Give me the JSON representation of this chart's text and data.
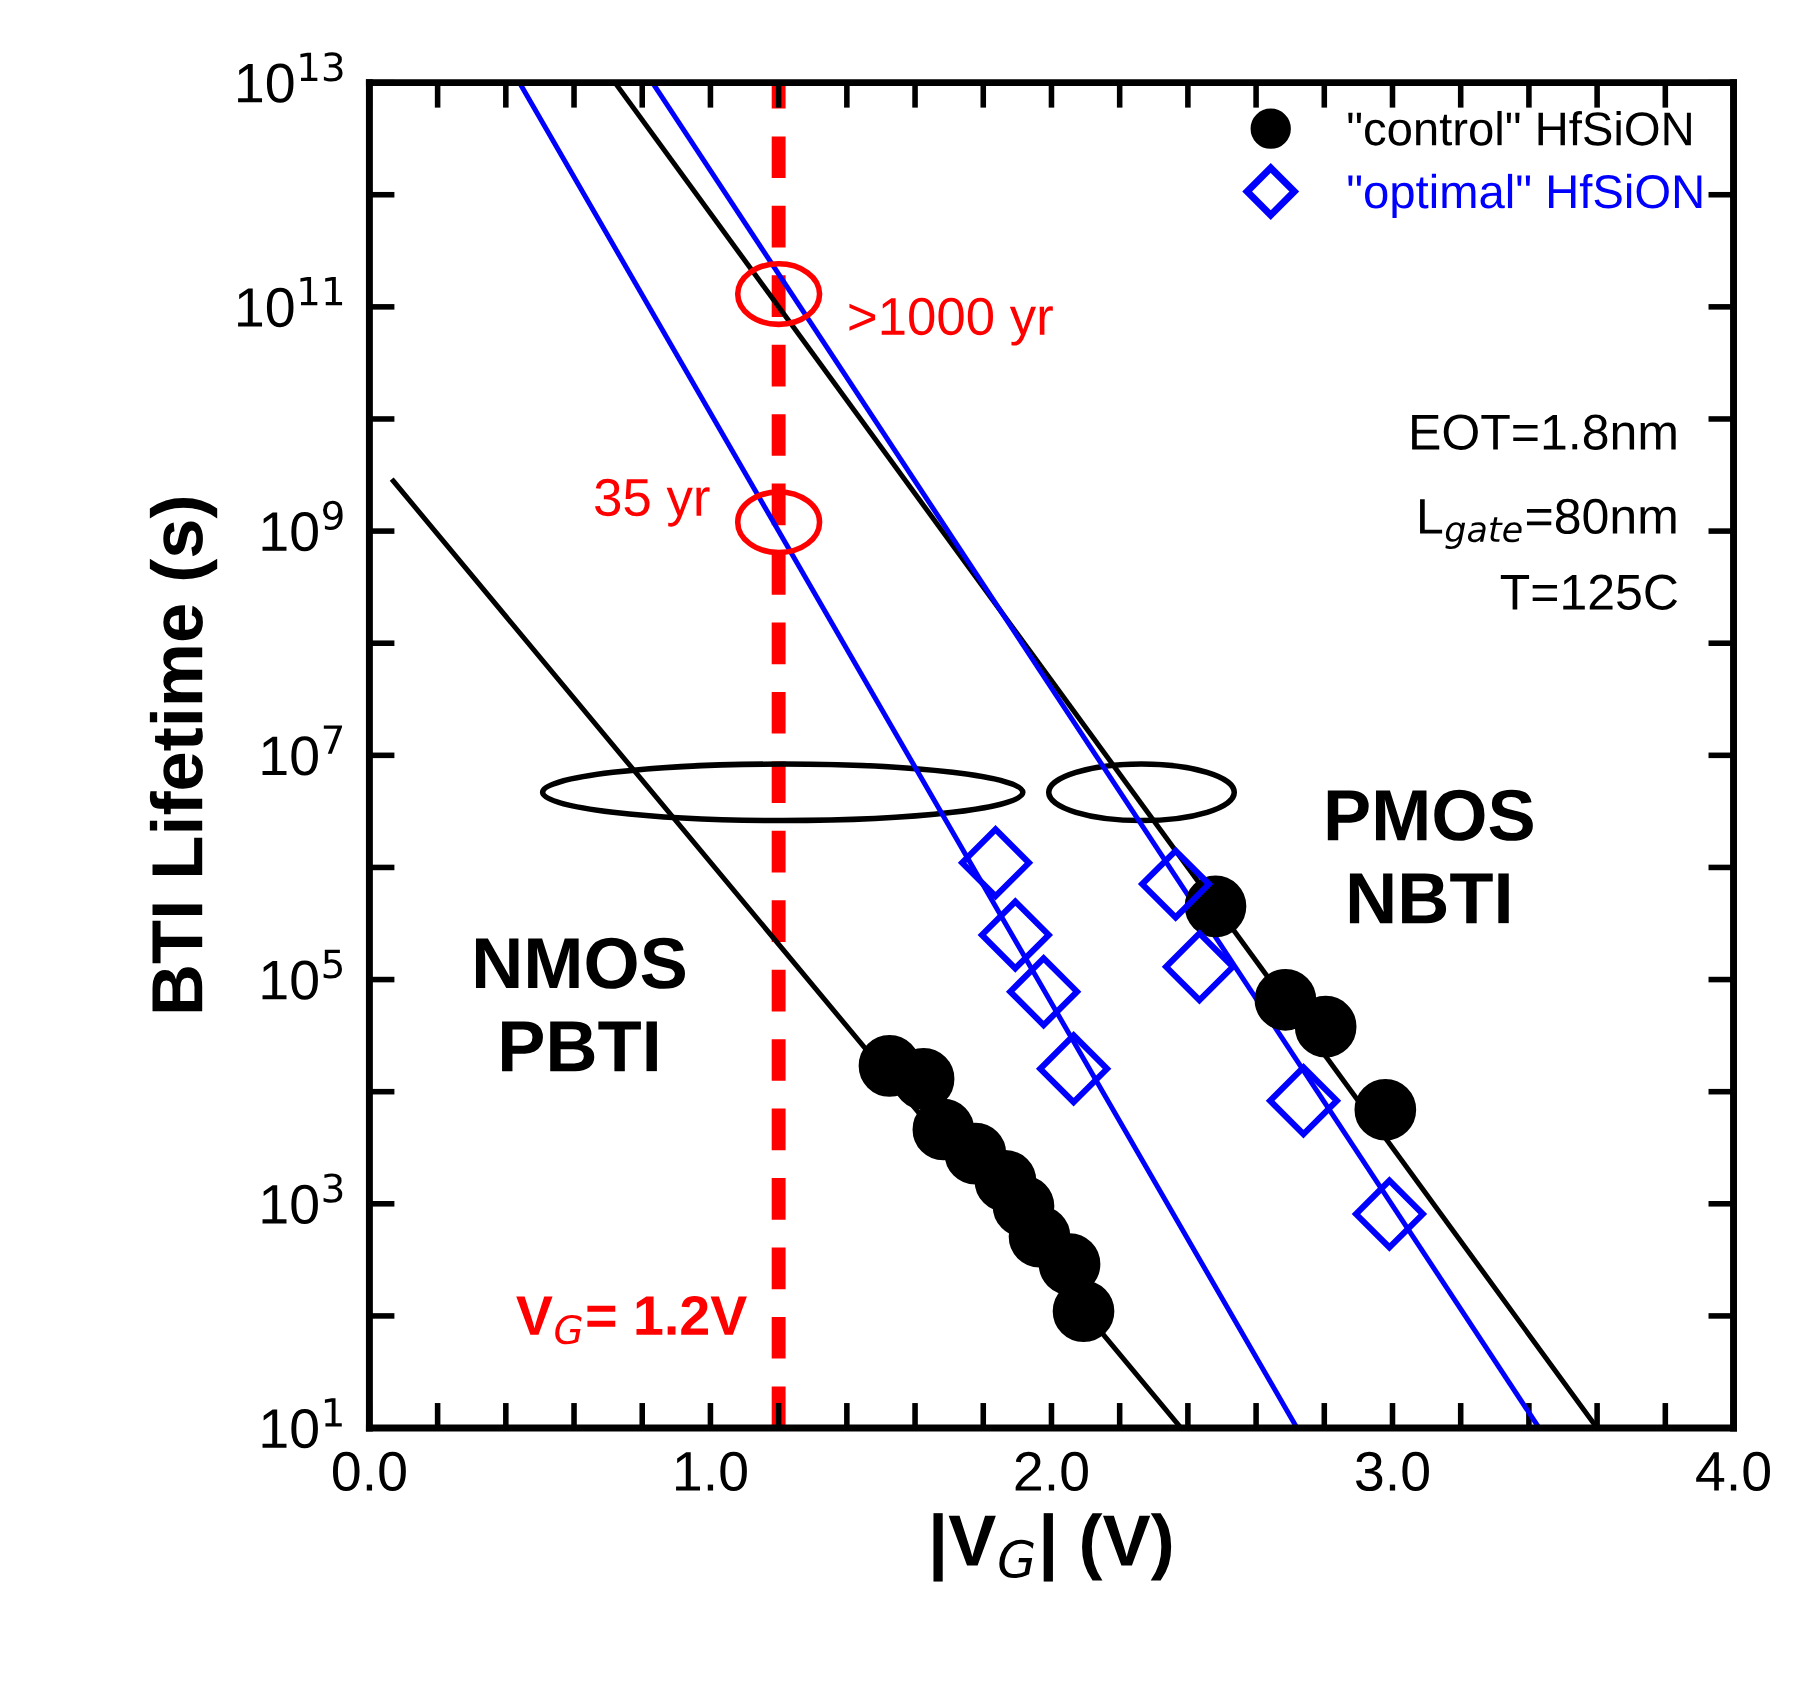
{
  "chart_data": {
    "type": "scatter",
    "xlabel": "|V$_{G}$| (V)",
    "ylabel": "BTI Lifetime (s)",
    "log": "y",
    "xlim": [
      0,
      4
    ],
    "ylim": [
      10,
      10000000000000.0
    ],
    "xticks": [
      {
        "value": 0,
        "label": "0.0"
      },
      {
        "value": 0.2,
        "label": null
      },
      {
        "value": 0.4,
        "label": null
      },
      {
        "value": 0.6,
        "label": null
      },
      {
        "value": 0.8,
        "label": null
      },
      {
        "value": 1,
        "label": "1.0"
      },
      {
        "value": 1.2,
        "label": null
      },
      {
        "value": 1.4,
        "label": null
      },
      {
        "value": 1.6,
        "label": null
      },
      {
        "value": 1.8,
        "label": null
      },
      {
        "value": 2,
        "label": "2.0"
      },
      {
        "value": 2.2,
        "label": null
      },
      {
        "value": 2.4,
        "label": null
      },
      {
        "value": 2.6,
        "label": null
      },
      {
        "value": 2.8,
        "label": null
      },
      {
        "value": 3,
        "label": "3.0"
      },
      {
        "value": 3.2,
        "label": null
      },
      {
        "value": 3.4,
        "label": null
      },
      {
        "value": 3.6,
        "label": null
      },
      {
        "value": 3.8,
        "label": null
      },
      {
        "value": 4,
        "label": "4.0"
      }
    ],
    "yticks": [
      {
        "value": 10,
        "label": "10$^{1}$"
      },
      {
        "value": 100,
        "label": null
      },
      {
        "value": 1000,
        "label": "10$^{3}$"
      },
      {
        "value": 10000,
        "label": null
      },
      {
        "value": 100000,
        "label": "10$^{5}$"
      },
      {
        "value": 1000000,
        "label": null
      },
      {
        "value": 10000000,
        "label": "10$^{7}$"
      },
      {
        "value": 100000000,
        "label": null
      },
      {
        "value": 1000000000,
        "label": "10$^{9}$"
      },
      {
        "value": 10000000000,
        "label": null
      },
      {
        "value": 100000000000,
        "label": "10$^{11}$"
      },
      {
        "value": 1000000000000,
        "label": null
      },
      {
        "value": 10000000000000,
        "label": "10$^{13}$"
      }
    ],
    "grid": false,
    "legend": "top right",
    "series": [
      {
        "type": "line",
        "color": "#000000",
        "x": [
          0.07,
          2.38
        ],
        "values": [
          2800000000.0,
          10
        ]
      },
      {
        "type": "line",
        "color": "#000000",
        "x": [
          0.72,
          3.6
        ],
        "values": [
          10000000000000.0,
          10
        ]
      },
      {
        "type": "line",
        "color": "#0000ff",
        "x": [
          0.44,
          2.72
        ],
        "values": [
          10000000000000.0,
          10
        ]
      },
      {
        "type": "line",
        "color": "#0000ff",
        "x": [
          0.83,
          3.43
        ],
        "values": [
          10000000000000.0,
          10
        ]
      },
      {
        "name": "\"control\" HfSiON",
        "color": "#000000",
        "marker": "circle",
        "x": [
          1.525,
          1.625,
          1.683,
          1.777,
          1.865,
          1.918,
          1.965,
          2.053,
          2.094,
          2.481,
          2.686,
          2.804,
          2.979
        ],
        "values": [
          17000.0,
          13000.0,
          4600.0,
          2800.0,
          1600.0,
          950,
          510,
          290,
          110,
          450000.0,
          66000.0,
          38000.0,
          6900.0
        ]
      },
      {
        "name": "\"optimal\" HfSiON",
        "color": "#0000ff",
        "marker": "diamond",
        "x": [
          1.836,
          1.894,
          1.977,
          2.065,
          2.364,
          2.434,
          2.739,
          2.991
        ],
        "values": [
          1100000.0,
          250000.0,
          78000.0,
          16000.0,
          710000.0,
          130000.0,
          8300.0,
          810
        ]
      }
    ],
    "ref_lines": [
      {
        "axis": "x",
        "value": 1.2,
        "label": "V$_{G}$= 1.2V",
        "color": "#ff0000",
        "line_style": "dashed"
      }
    ],
    "annotations": [
      {
        "text": ">1000 yr",
        "x": 1.2,
        "y": 130000000000.0
      },
      {
        "text": "35 yr",
        "x": 1.2,
        "y": 1200000000.0
      },
      "EOT=1.8nm",
      "L$_{gate}$=80nm",
      "T=125C",
      "NMOS\nPBTI",
      "PMOS\nNBTI"
    ]
  }
}
